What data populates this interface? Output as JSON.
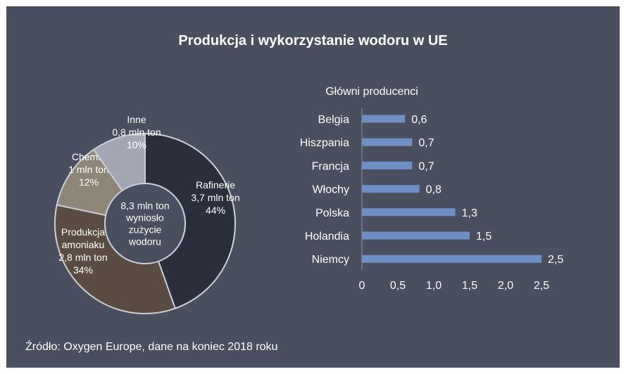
{
  "title": "Produkcja i wykorzystanie wodoru w UE",
  "source": "Źródło: Oxygen Europe, dane na koniec 2018 roku",
  "chart_data": [
    {
      "type": "pie",
      "center_text": [
        "8,3 mln ton",
        "wyniosło",
        "zużycie",
        "wodoru"
      ],
      "slices": [
        {
          "label": [
            "Rafinerie",
            "3,7 mln ton",
            "44%"
          ],
          "value": 3.7,
          "percent": 44,
          "color": "#2b2f3b"
        },
        {
          "label": [
            "Produkcja",
            "amoniaku",
            "2,8 mln ton",
            "34%"
          ],
          "value": 2.8,
          "percent": 34,
          "color": "#5a4c42"
        },
        {
          "label": [
            "Chemia",
            "1 mln ton",
            "12%"
          ],
          "value": 1.0,
          "percent": 12,
          "color": "#8e8678"
        },
        {
          "label": [
            "Inne",
            "0,8 mln ton",
            "10%"
          ],
          "value": 0.8,
          "percent": 10,
          "color": "#a3a7b3"
        }
      ],
      "ring_color": "#c9ccd3"
    },
    {
      "type": "bar",
      "orientation": "horizontal",
      "title": "Główni producenci",
      "categories": [
        "Belgia",
        "Hiszpania",
        "Francja",
        "Włochy",
        "Polska",
        "Holandia",
        "Niemcy"
      ],
      "values": [
        0.6,
        0.7,
        0.7,
        0.8,
        1.3,
        1.5,
        2.5
      ],
      "value_labels": [
        "0,6",
        "0,7",
        "0,7",
        "0,8",
        "1,3",
        "1,5",
        "2,5"
      ],
      "xlim": [
        0,
        2.5
      ],
      "x_ticks": [
        "0",
        "0,5",
        "1,0",
        "1,5",
        "2,0",
        "2,5"
      ],
      "bar_color": "#6f8fc4",
      "grid": false
    }
  ]
}
